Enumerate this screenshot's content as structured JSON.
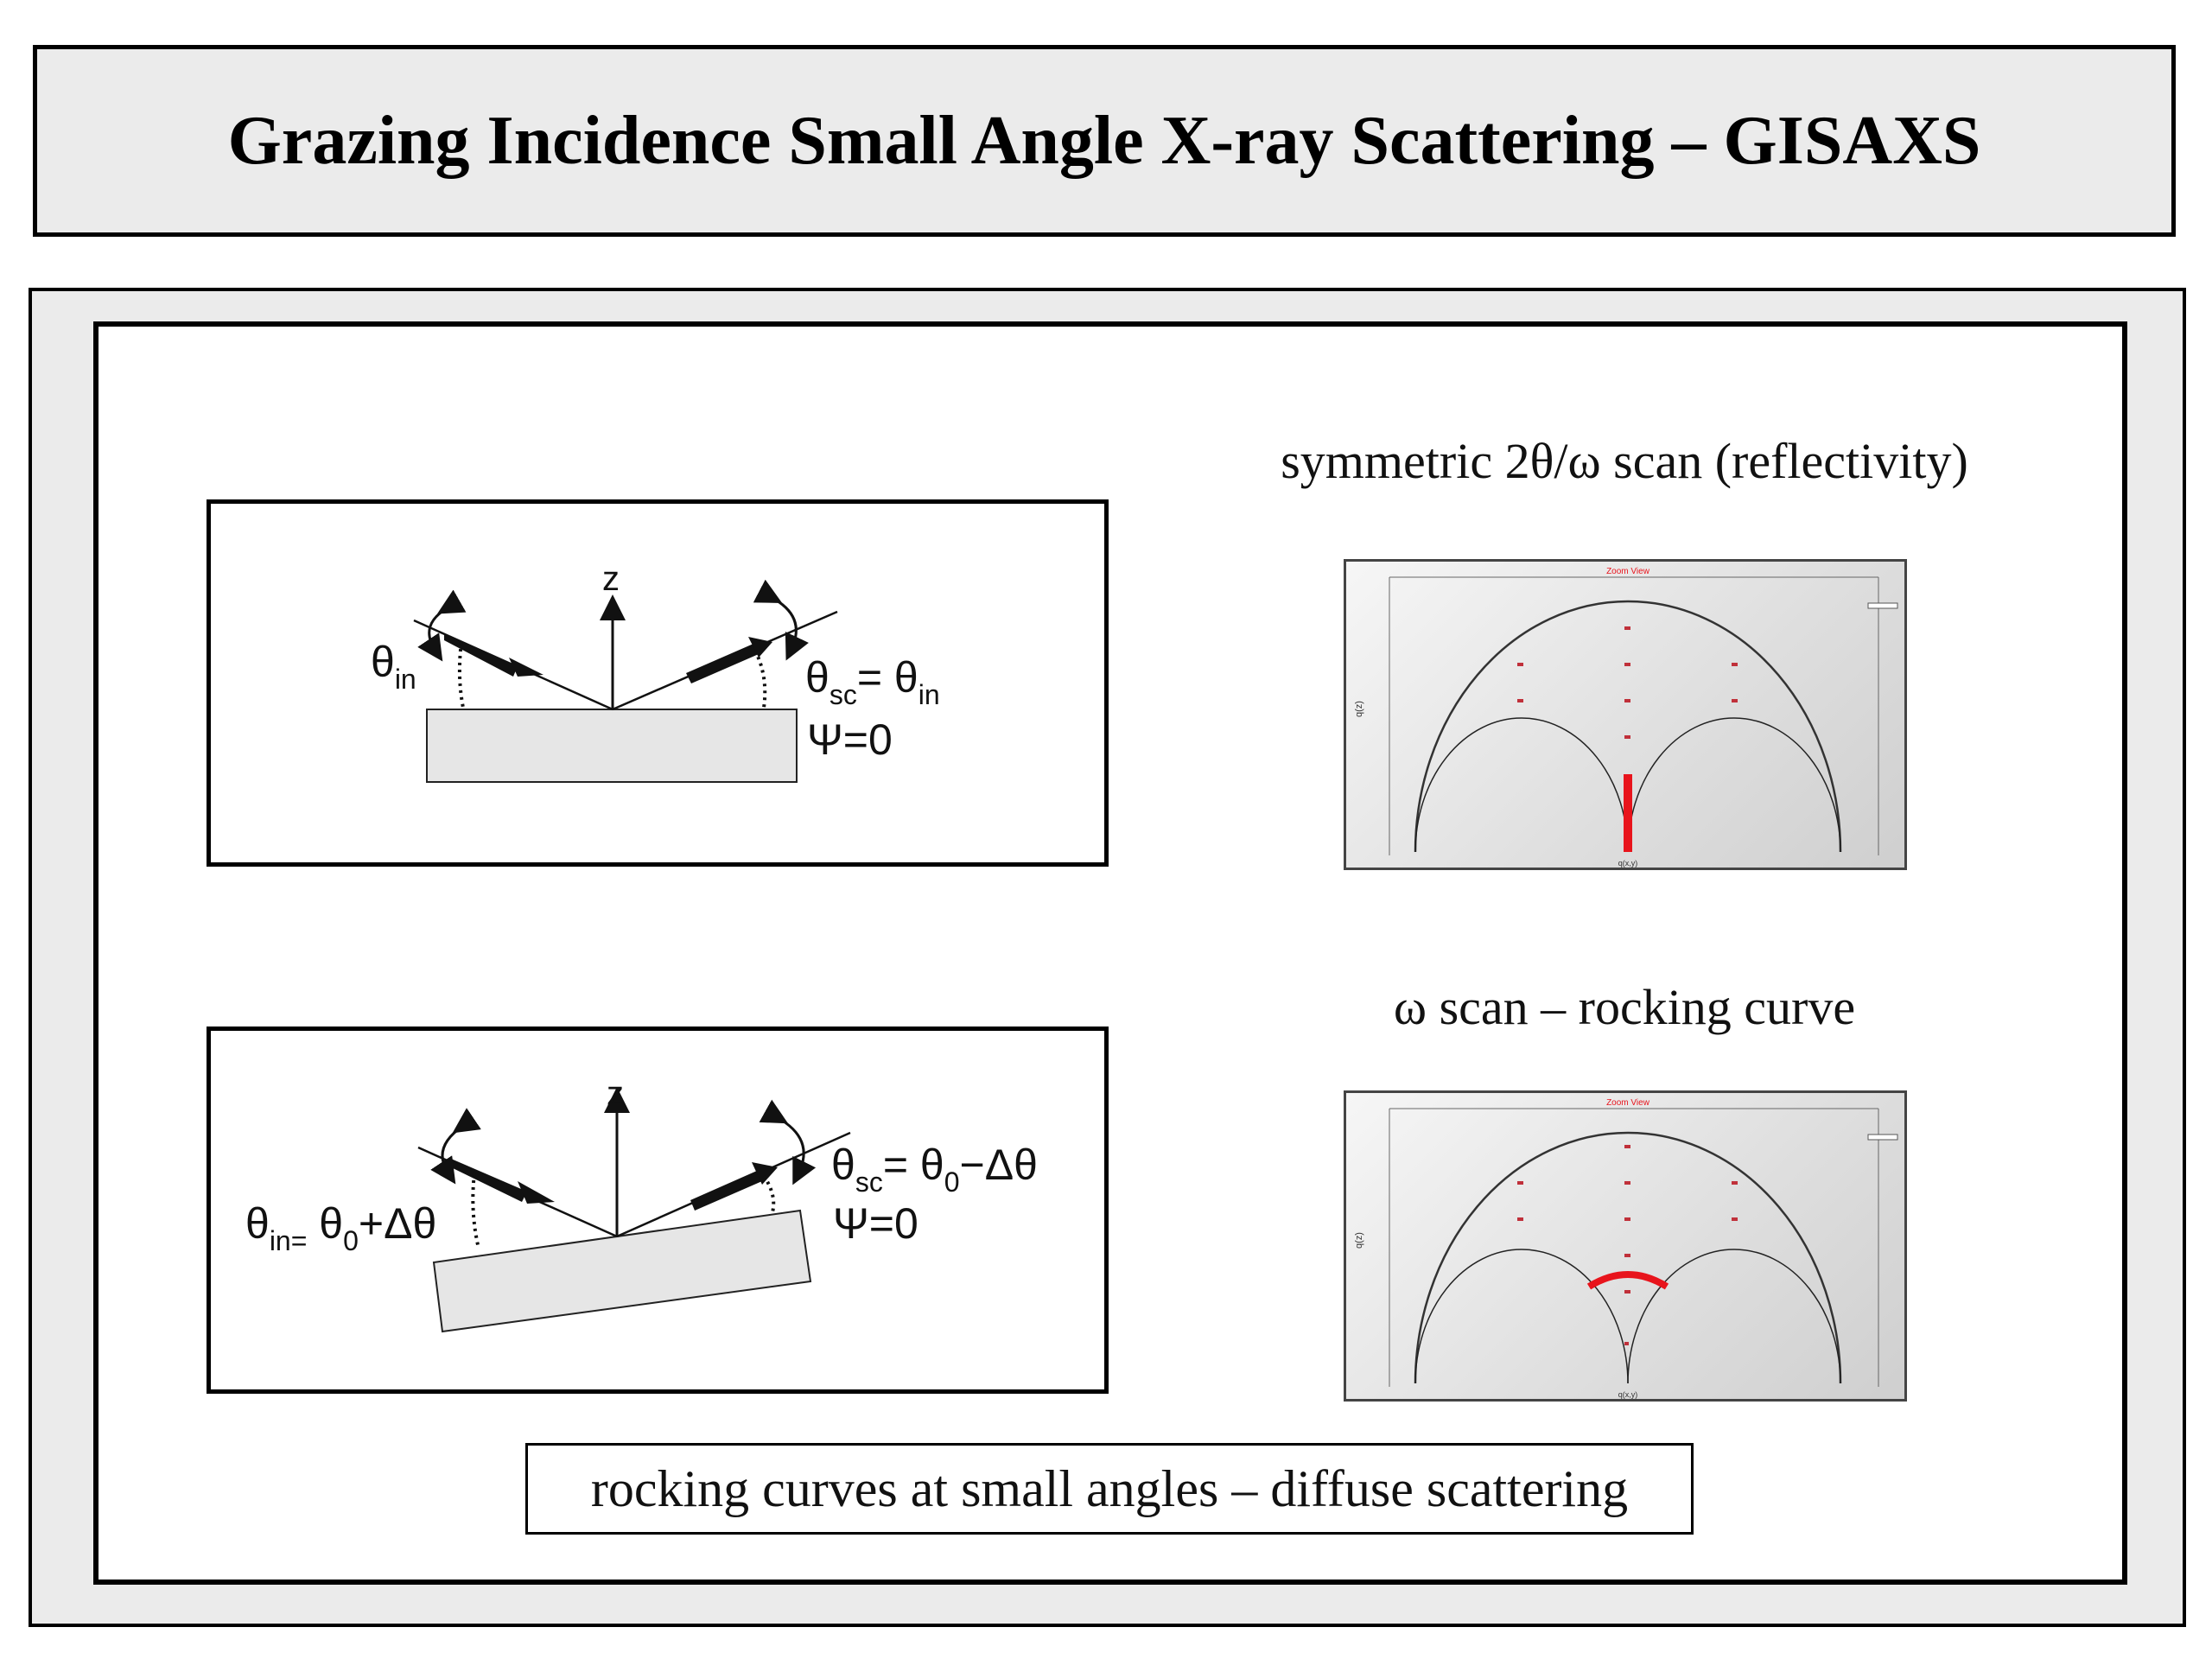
{
  "title": "Grazing Incidence Small Angle X-ray Scattering – GISAXS",
  "diagram_top": {
    "z_label": "z",
    "theta_in_symbol": "θ",
    "theta_in_sub": "in",
    "theta_sc_symbol": "θ",
    "theta_sc_sub": "sc",
    "theta_sc_eq": "= θ",
    "theta_sc_eq_sub": "in",
    "psi": "Ψ=0"
  },
  "diagram_bottom": {
    "z_label": "z",
    "theta_in_symbol": "θ",
    "theta_in_sub": "in=",
    "theta_in_rhs": " θ",
    "theta_in_rhs_sub": "0",
    "theta_in_rhs_tail": "+Δθ",
    "theta_sc_symbol": "θ",
    "theta_sc_sub": "sc",
    "theta_sc_eq": "= θ",
    "theta_sc_eq_sub": "0",
    "theta_sc_tail": "−Δθ",
    "psi": "Ψ=0"
  },
  "scan_top": {
    "caption": "symmetric 2θ/ω scan (reflectivity)",
    "plot_header": "Zoom View",
    "y_axis_label": "q(z)",
    "x_axis_label": "q(x,y)"
  },
  "scan_bottom": {
    "caption": "ω scan – rocking curve",
    "plot_header": "Zoom View",
    "y_axis_label": "q(z)",
    "x_axis_label": "q(x,y)"
  },
  "bottom_note": "rocking curves at small angles – diffuse scattering",
  "colors": {
    "highlight": "#e8141c",
    "panel_bg": "#ebebeb",
    "substrate": "#e6e6e6"
  }
}
